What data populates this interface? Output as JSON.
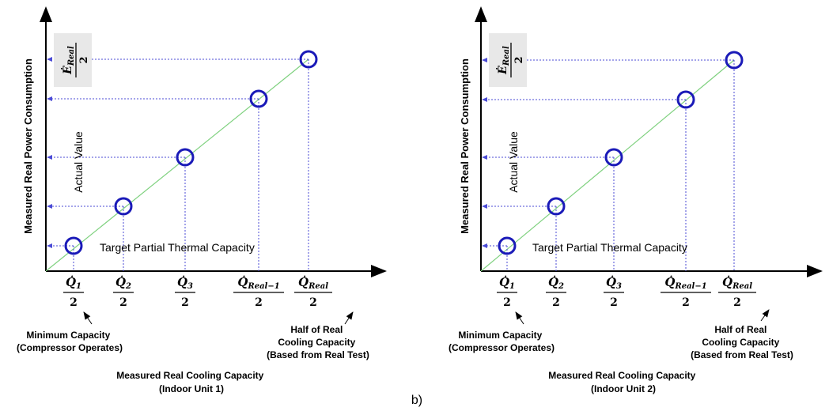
{
  "caption": "b)",
  "colors": {
    "marker": "#1a1ab8",
    "trend": "#7fd17f",
    "guide": "#4b4bd6",
    "axis": "#000000",
    "box": "#e8e8e8"
  },
  "panels": [
    {
      "ylabel": "Measured Real Power Consumption",
      "ymax_label": {
        "symbol": "Ė",
        "sub": "Real",
        "den": "2"
      },
      "actual_value_label": "Actual Value",
      "target_label": "Target Partial Thermal Capacity",
      "ticks": [
        {
          "symbol": "Q̇",
          "sub": "1",
          "den": "2"
        },
        {
          "symbol": "Q̇",
          "sub": "2",
          "den": "2"
        },
        {
          "symbol": "Q̇",
          "sub": "3",
          "den": "2"
        },
        {
          "symbol": "Q̇",
          "sub": "Real−1",
          "den": "2"
        },
        {
          "symbol": "Q̇",
          "sub": "Real",
          "den": "2"
        }
      ],
      "annotation_min": [
        "Minimum Capacity",
        "(Compressor Operates)"
      ],
      "annotation_half": [
        "Half of Real",
        "Cooling Capacity",
        "(Based from Real Test)"
      ],
      "xlabel": [
        "Measured Real  Cooling Capacity",
        "(Indoor Unit 1)"
      ]
    },
    {
      "ylabel": "Measured Real Power Consumption",
      "ymax_label": {
        "symbol": "Ė",
        "sub": "Real",
        "den": "2"
      },
      "actual_value_label": "Actual Value",
      "target_label": "Target Partial Thermal Capacity",
      "ticks": [
        {
          "symbol": "Q̇",
          "sub": "1",
          "den": "2"
        },
        {
          "symbol": "Q̇",
          "sub": "2",
          "den": "2"
        },
        {
          "symbol": "Q̇",
          "sub": "3",
          "den": "2"
        },
        {
          "symbol": "Q̇",
          "sub": "Real−1",
          "den": "2"
        },
        {
          "symbol": "Q̇",
          "sub": "Real",
          "den": "2"
        }
      ],
      "annotation_min": [
        "Minimum Capacity",
        "(Compressor Operates)"
      ],
      "annotation_half": [
        "Half of Real",
        "Cooling Capacity",
        "(Based from Real Test)"
      ],
      "xlabel": [
        "Measured Real  Cooling Capacity",
        "(Indoor Unit 2)"
      ]
    }
  ]
}
